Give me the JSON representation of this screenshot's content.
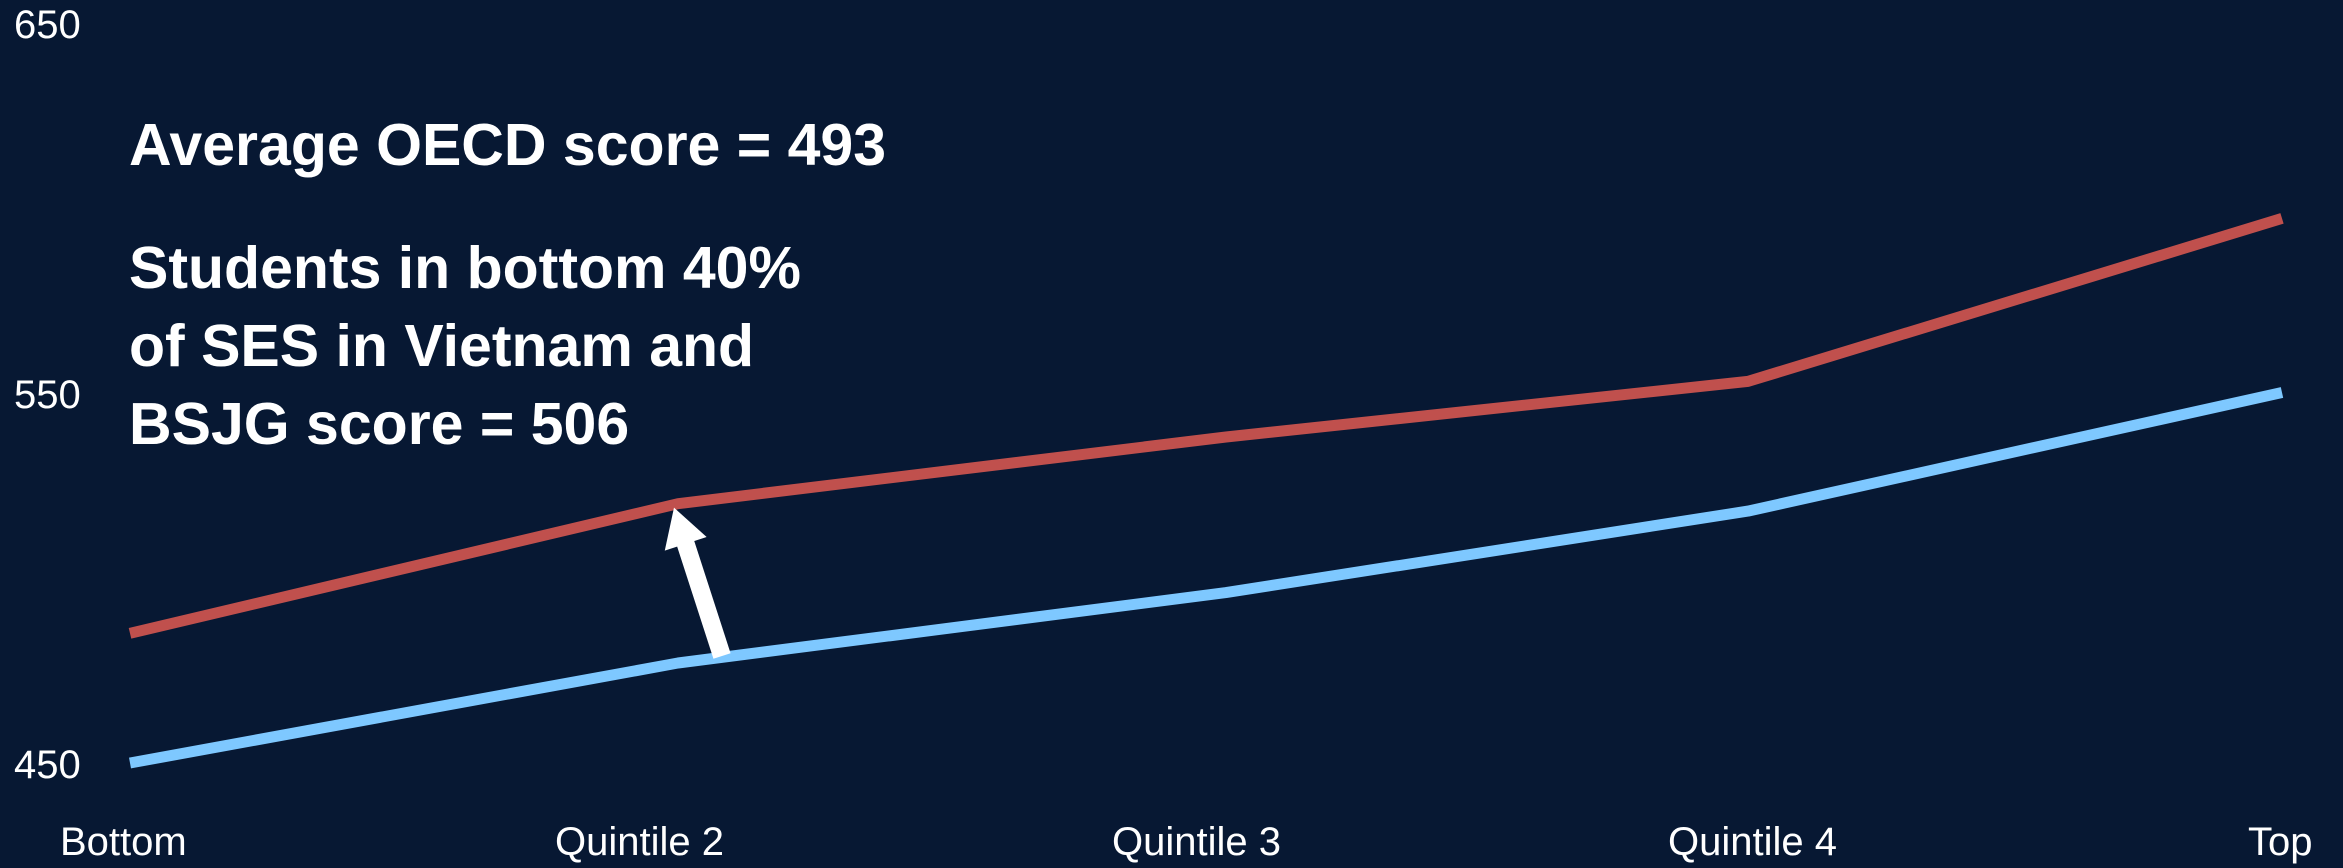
{
  "chart_data": {
    "type": "line",
    "title": "",
    "xlabel": "",
    "ylabel": "",
    "categories": [
      "Bottom",
      "Quintile 2",
      "Quintile 3",
      "Quintile 4",
      "Top"
    ],
    "ylim": [
      450,
      650
    ],
    "yticks": [
      "650",
      "550",
      "450"
    ],
    "grid": false,
    "legend": "none",
    "series": [
      {
        "color": "#c0504d",
        "values": [
          485,
          520,
          538,
          553,
          597
        ]
      },
      {
        "color": "#7ec8ff",
        "values": [
          450,
          477,
          496,
          518,
          550
        ]
      }
    ],
    "annotations": {
      "average_line": "Average OECD score = 493",
      "students_lines": [
        "Students in bottom 40%",
        "of SES in Vietnam and",
        "BSJG score = 506"
      ]
    },
    "arrow": {
      "from_category": "Quintile 2",
      "color": "#ffffff"
    }
  },
  "colors": {
    "background": "#071833",
    "text": "#ffffff"
  }
}
